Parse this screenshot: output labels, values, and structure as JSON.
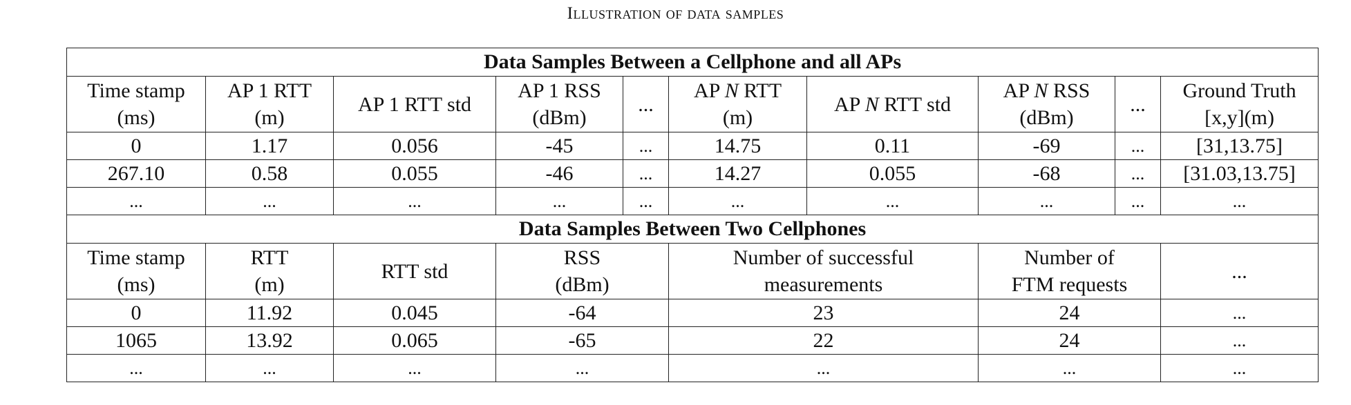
{
  "caption": "Illustration of data samples",
  "section1": {
    "title": "Data Samples Between a Cellphone and all APs",
    "headers": [
      [
        "Time stamp",
        "(ms)"
      ],
      [
        "AP 1 RTT",
        "(m)"
      ],
      [
        "AP 1 RTT std"
      ],
      [
        "AP 1 RSS",
        "(dBm)"
      ],
      [
        "..."
      ],
      [
        "AP N RTT",
        "(m)"
      ],
      [
        "AP N RTT std"
      ],
      [
        "AP N RSS",
        "(dBm)"
      ],
      [
        "..."
      ],
      [
        "Ground Truth",
        "[x,y](m)"
      ]
    ],
    "rows": [
      [
        "0",
        "1.17",
        "0.056",
        "-45",
        "...",
        "14.75",
        "0.11",
        "-69",
        "...",
        "[31,13.75]"
      ],
      [
        "267.10",
        "0.58",
        "0.055",
        "-46",
        "...",
        "14.27",
        "0.055",
        "-68",
        "...",
        "[31.03,13.75]"
      ],
      [
        "...",
        "...",
        "...",
        "...",
        "...",
        "...",
        "...",
        "...",
        "...",
        "..."
      ]
    ]
  },
  "section2": {
    "title": "Data Samples Between Two Cellphones",
    "headers": [
      [
        "Time stamp",
        "(ms)"
      ],
      [
        "RTT",
        "(m)"
      ],
      [
        "RTT std"
      ],
      [
        "RSS",
        "(dBm)"
      ],
      [
        "Number of successful",
        "measurements"
      ],
      [
        "Number of",
        "FTM requests"
      ],
      [
        "..."
      ]
    ],
    "rows": [
      [
        "0",
        "11.92",
        "0.045",
        "-64",
        "23",
        "24",
        "..."
      ],
      [
        "1065",
        "13.92",
        "0.065",
        "-65",
        "22",
        "24",
        "..."
      ],
      [
        "...",
        "...",
        "...",
        "...",
        "...",
        "...",
        "..."
      ]
    ]
  }
}
